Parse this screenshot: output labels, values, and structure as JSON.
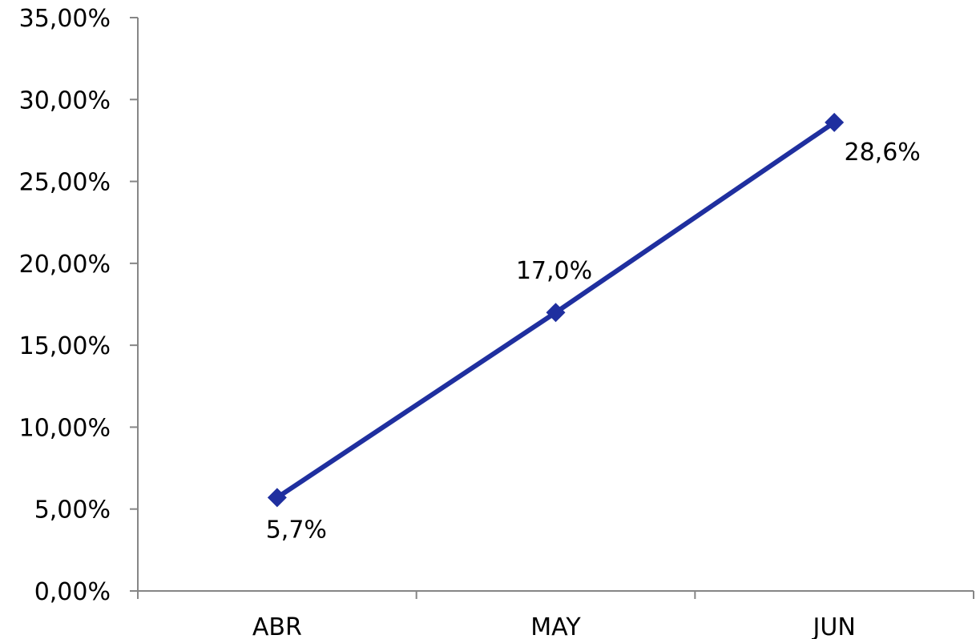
{
  "chart_data": {
    "type": "line",
    "categories": [
      "ABR",
      "MAY",
      "JUN"
    ],
    "series": [
      {
        "values": [
          5.7,
          17.0,
          28.6
        ],
        "data_labels": [
          "5,7%",
          "17,0%",
          "28,6%"
        ],
        "color": "#1F2F9F",
        "marker": "diamond"
      }
    ],
    "y_tick_values": [
      0,
      5,
      10,
      15,
      20,
      25,
      30,
      35
    ],
    "y_tick_labels": [
      "0,00%",
      "5,00%",
      "10,00%",
      "15,00%",
      "20,00%",
      "25,00%",
      "30,00%",
      "35,00%"
    ],
    "ylim": [
      0,
      35
    ],
    "ylabel_unit": "%",
    "grid": false,
    "legend": "none",
    "title": "",
    "xlabel": "",
    "ylabel": ""
  }
}
